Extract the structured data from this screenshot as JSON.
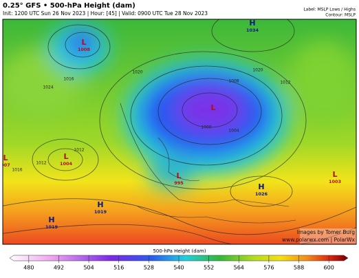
{
  "header": {
    "title": "0.25° GFS • 500-hPa Height (dam)",
    "subtitle": "Init: 1200 UTC Sun 26 Nov 2023 | Hour: [45] | Valid: 0900 UTC Tue 28 Nov 2023",
    "label_note": "Label: MSLP Lows / Highs",
    "contour_note": "Contour: MSLP"
  },
  "centers": [
    {
      "kind": "L",
      "value": "1008"
    },
    {
      "kind": "L",
      "value": "1004"
    },
    {
      "kind": "L",
      "value": "007"
    },
    {
      "kind": "H",
      "value": "1034"
    },
    {
      "kind": "L"
    },
    {
      "kind": "L",
      "value": "995"
    },
    {
      "kind": "H",
      "value": "1026"
    },
    {
      "kind": "L",
      "value": "1003"
    },
    {
      "kind": "H",
      "value": "1019"
    },
    {
      "kind": "H",
      "value": "1019"
    }
  ],
  "contour_labels": [
    "1012",
    "1024",
    "1016",
    "1020",
    "1012",
    "1008",
    "1000",
    "1004",
    "1016",
    "1020",
    "1012"
  ],
  "credits": {
    "line1": "Images by Tomer Burg",
    "line2": "www.polarwx.com | PolarWx"
  },
  "colorbar": {
    "title": "500-hPa Height (dam)",
    "lim": [
      474,
      606
    ],
    "ticks": [
      480,
      492,
      504,
      516,
      528,
      540,
      552,
      564,
      576,
      588,
      600
    ]
  }
}
